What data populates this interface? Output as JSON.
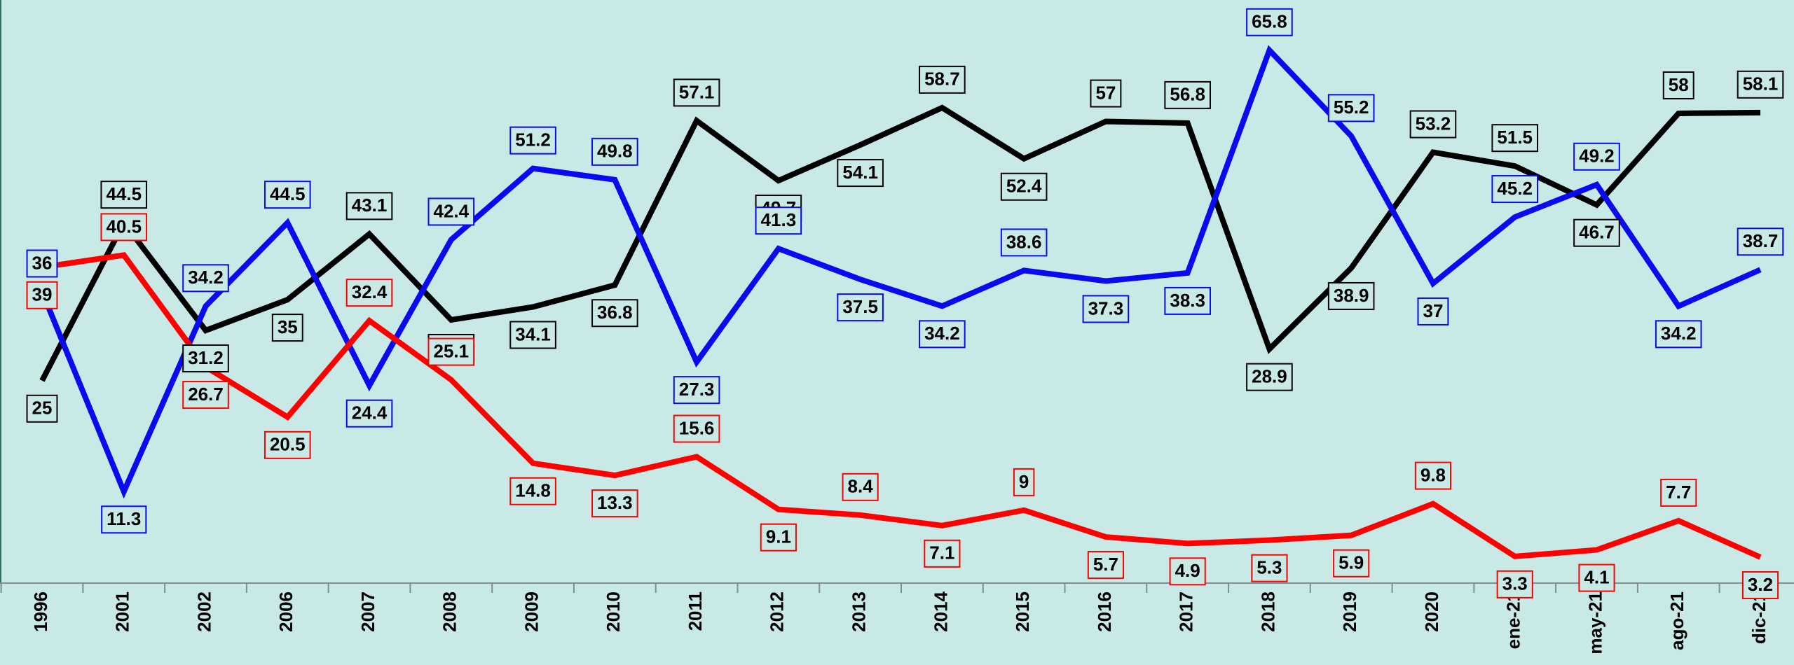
{
  "chart_data": {
    "type": "line",
    "categories": [
      "1996",
      "2001",
      "2002",
      "2006",
      "2007",
      "2008",
      "2009",
      "2010",
      "2011",
      "2012",
      "2013",
      "2014",
      "2015",
      "2016",
      "2017",
      "2018",
      "2019",
      "2020",
      "ene-21",
      "may-21",
      "ago-21",
      "dic-21"
    ],
    "series": [
      {
        "color": "#000000",
        "values": [
          25.0,
          44.5,
          31.2,
          35.0,
          43.1,
          32.5,
          34.1,
          36.8,
          57.1,
          49.7,
          54.1,
          58.7,
          52.4,
          57.0,
          56.8,
          28.9,
          38.9,
          53.2,
          51.5,
          46.7,
          58.0,
          58.1
        ]
      },
      {
        "color": "#0a0af0",
        "values": [
          36.0,
          11.3,
          34.2,
          44.5,
          24.4,
          42.4,
          51.2,
          49.8,
          27.3,
          41.3,
          37.5,
          34.2,
          38.6,
          37.3,
          38.3,
          65.8,
          55.2,
          37.0,
          45.2,
          49.2,
          34.2,
          38.7
        ]
      },
      {
        "color": "#ff0000",
        "values": [
          39.0,
          40.5,
          26.7,
          20.5,
          32.4,
          25.1,
          14.8,
          13.3,
          15.6,
          9.1,
          8.4,
          7.1,
          9.0,
          5.7,
          4.9,
          5.3,
          5.9,
          9.8,
          3.3,
          4.1,
          7.7,
          3.2
        ]
      }
    ],
    "ylim": [
      0,
      72
    ]
  }
}
